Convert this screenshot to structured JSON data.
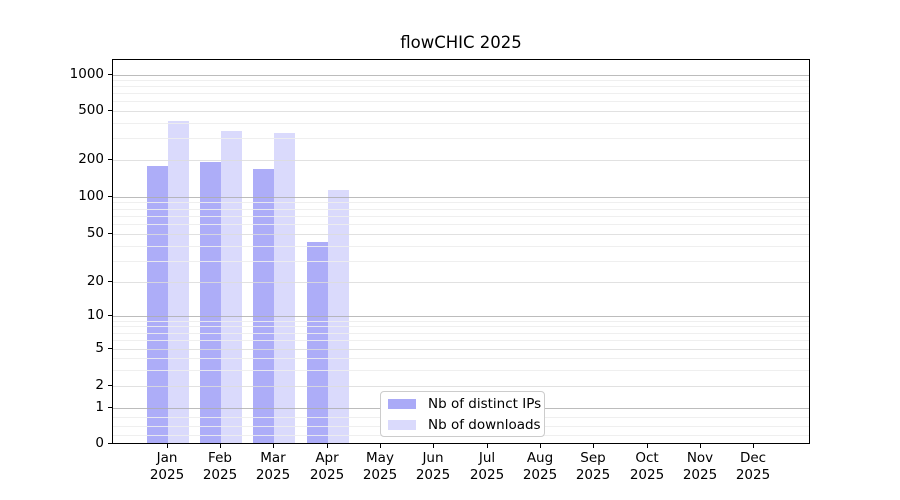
{
  "title": "flowCHIC 2025",
  "chart_data": {
    "type": "bar",
    "title": "flowCHIC 2025",
    "categories": [
      "Jan 2025",
      "Feb 2025",
      "Mar 2025",
      "Apr 2025",
      "May 2025",
      "Jun 2025",
      "Jul 2025",
      "Aug 2025",
      "Sep 2025",
      "Oct 2025",
      "Nov 2025",
      "Dec 2025"
    ],
    "series": [
      {
        "name": "Nb of distinct IPs",
        "color": "#aaaaf7",
        "values": [
          178,
          192,
          169,
          43,
          null,
          null,
          null,
          null,
          null,
          null,
          null,
          null
        ]
      },
      {
        "name": "Nb of downloads",
        "color": "#dadafc",
        "values": [
          415,
          343,
          330,
          113,
          null,
          null,
          null,
          null,
          null,
          null,
          null,
          null
        ]
      }
    ],
    "yscale": "symlog",
    "yticks": [
      0,
      1,
      2,
      5,
      10,
      20,
      50,
      100,
      200,
      500,
      1000
    ],
    "ylim": [
      0,
      1300
    ],
    "xlabel": "",
    "ylabel": "",
    "grid": "on",
    "legend_position": "inside-bottom-center"
  }
}
